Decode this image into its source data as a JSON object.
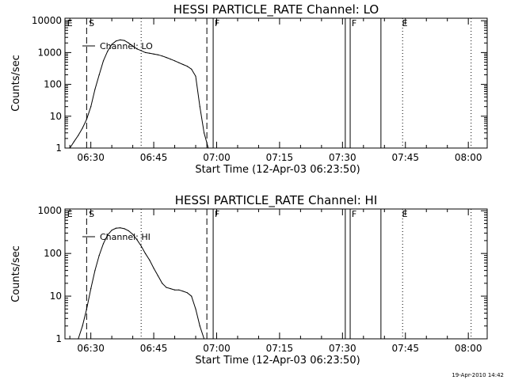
{
  "chart_data": [
    {
      "type": "line",
      "title": "HESSI PARTICLE_RATE Channel: LO",
      "xlabel": "Start Time (12-Apr-03 06:23:50)",
      "ylabel": "Counts/sec",
      "x_ticks": [
        "06:30",
        "06:45",
        "07:00",
        "07:15",
        "07:30",
        "07:45",
        "08:00"
      ],
      "y_ticks": [
        "1",
        "10",
        "100",
        "1000",
        "10000"
      ],
      "xlim": [
        "06:23:50",
        "08:04:30"
      ],
      "ylim": [
        1,
        12000
      ],
      "yscale": "log",
      "series": [
        {
          "name": "Channel: LO",
          "x": [
            "06:25",
            "06:26",
            "06:27",
            "06:28",
            "06:29",
            "06:30",
            "06:31",
            "06:32",
            "06:33",
            "06:34",
            "06:35",
            "06:36",
            "06:37",
            "06:38",
            "06:39",
            "06:40",
            "06:41",
            "06:42",
            "06:43",
            "06:44",
            "06:45",
            "06:46",
            "06:47",
            "06:48",
            "06:49",
            "06:50",
            "06:51",
            "06:52",
            "06:53",
            "06:54",
            "06:55",
            "06:56",
            "06:57",
            "06:58"
          ],
          "y": [
            1.0,
            1.6,
            2.5,
            4.2,
            8,
            20,
            70,
            200,
            550,
            1100,
            1800,
            2300,
            2500,
            2400,
            2000,
            1600,
            1300,
            1150,
            1000,
            950,
            900,
            850,
            780,
            700,
            620,
            550,
            480,
            420,
            370,
            300,
            180,
            20,
            3,
            1.0
          ]
        }
      ],
      "vlines_dashed": [
        "06:29:00",
        "06:57:40"
      ],
      "vlines_dotted": [
        "06:42:00",
        "07:44:20",
        "08:00:40"
      ],
      "vlines_solid": [
        "06:59:10",
        "07:30:40",
        "07:31:50",
        "07:39:10"
      ],
      "flags": [
        {
          "label": "E",
          "t": "06:24:10"
        },
        {
          "label": "S",
          "t": "06:29:20"
        },
        {
          "label": "F",
          "t": "06:59:20"
        },
        {
          "label": "F",
          "t": "07:32:00"
        },
        {
          "label": "E",
          "t": "07:44:00"
        }
      ],
      "legend_position": "top-left"
    },
    {
      "type": "line",
      "title": "HESSI PARTICLE_RATE Channel: HI",
      "xlabel": "Start Time (12-Apr-03 06:23:50)",
      "ylabel": "Counts/sec",
      "x_ticks": [
        "06:30",
        "06:45",
        "07:00",
        "07:15",
        "07:30",
        "07:45",
        "08:00"
      ],
      "y_ticks": [
        "1",
        "10",
        "100",
        "1000"
      ],
      "xlim": [
        "06:23:50",
        "08:04:30"
      ],
      "ylim": [
        1,
        1100
      ],
      "yscale": "log",
      "series": [
        {
          "name": "Channel: HI",
          "x": [
            "06:27",
            "06:28",
            "06:29",
            "06:30",
            "06:31",
            "06:32",
            "06:33",
            "06:34",
            "06:35",
            "06:36",
            "06:37",
            "06:38",
            "06:39",
            "06:40",
            "06:41",
            "06:42",
            "06:43",
            "06:44",
            "06:45",
            "06:46",
            "06:47",
            "06:48",
            "06:49",
            "06:50",
            "06:51",
            "06:52",
            "06:53",
            "06:54",
            "06:55",
            "06:56",
            "06:57"
          ],
          "y": [
            1.0,
            2,
            5,
            15,
            40,
            90,
            170,
            270,
            350,
            390,
            400,
            380,
            340,
            280,
            210,
            150,
            100,
            70,
            45,
            30,
            20,
            16,
            15,
            14,
            14,
            13,
            12,
            10,
            5,
            2,
            1.0
          ]
        }
      ],
      "vlines_dashed": [
        "06:29:00",
        "06:57:40"
      ],
      "vlines_dotted": [
        "06:42:00",
        "07:44:20",
        "08:00:40"
      ],
      "vlines_solid": [
        "06:59:10",
        "07:30:40",
        "07:31:50",
        "07:39:10"
      ],
      "flags": [
        {
          "label": "E",
          "t": "06:24:10"
        },
        {
          "label": "S",
          "t": "06:29:20"
        },
        {
          "label": "F",
          "t": "06:59:20"
        },
        {
          "label": "F",
          "t": "07:32:00"
        },
        {
          "label": "E",
          "t": "07:44:00"
        }
      ],
      "legend_position": "top-left"
    }
  ],
  "footer": {
    "stamp": "19-Apr-2010 14:42"
  }
}
